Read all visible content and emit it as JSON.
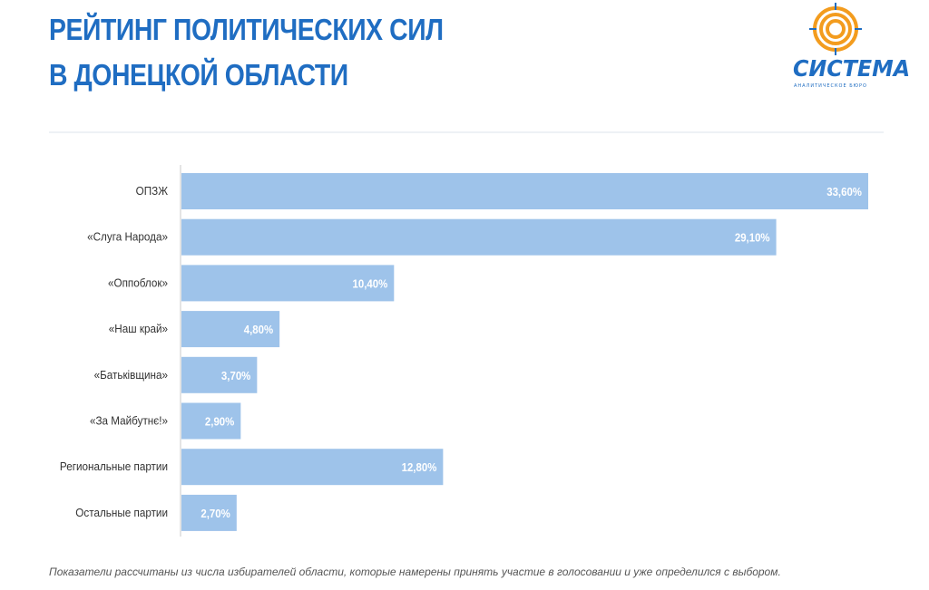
{
  "title": {
    "line1": "РЕЙТИНГ ПОЛИТИЧЕСКИХ СИЛ",
    "line2": "В ДОНЕЦКОЙ ОБЛАСТИ"
  },
  "logo": {
    "name": "СИСТЕМА",
    "subtitle": "АНАЛИТИЧЕСКОЕ БЮРО",
    "icon": "concentric-rings-logo-icon"
  },
  "colors": {
    "title": "#1f6dc2",
    "bar": "#9ec3ea",
    "bar_label": "#ffffff",
    "category_label": "#333333",
    "axis": "#c8c8c8",
    "logo_orange": "#f39c1e",
    "logo_blue": "#1f6dc2",
    "footnote": "#555555"
  },
  "chart_data": {
    "type": "bar",
    "orientation": "horizontal",
    "categories": [
      "ОПЗЖ",
      "«Слуга Народа»",
      "«Оппоблок»",
      "«Наш край»",
      "«Батьківщина»",
      "«За Майбутнє!»",
      "Региональные партии",
      "Остальные партии"
    ],
    "values": [
      33.6,
      29.1,
      10.4,
      4.8,
      3.7,
      2.9,
      12.8,
      2.7
    ],
    "value_labels": [
      "33,60%",
      "29,10%",
      "10,40%",
      "4,80%",
      "3,70%",
      "2,90%",
      "12,80%",
      "2,70%"
    ],
    "xlim": [
      0,
      34
    ],
    "grid": false,
    "legend": "none"
  },
  "footnote": "Показатели рассчитаны из числа избирателей области, которые намерены принять участие в голосовании и уже определился с выбором."
}
